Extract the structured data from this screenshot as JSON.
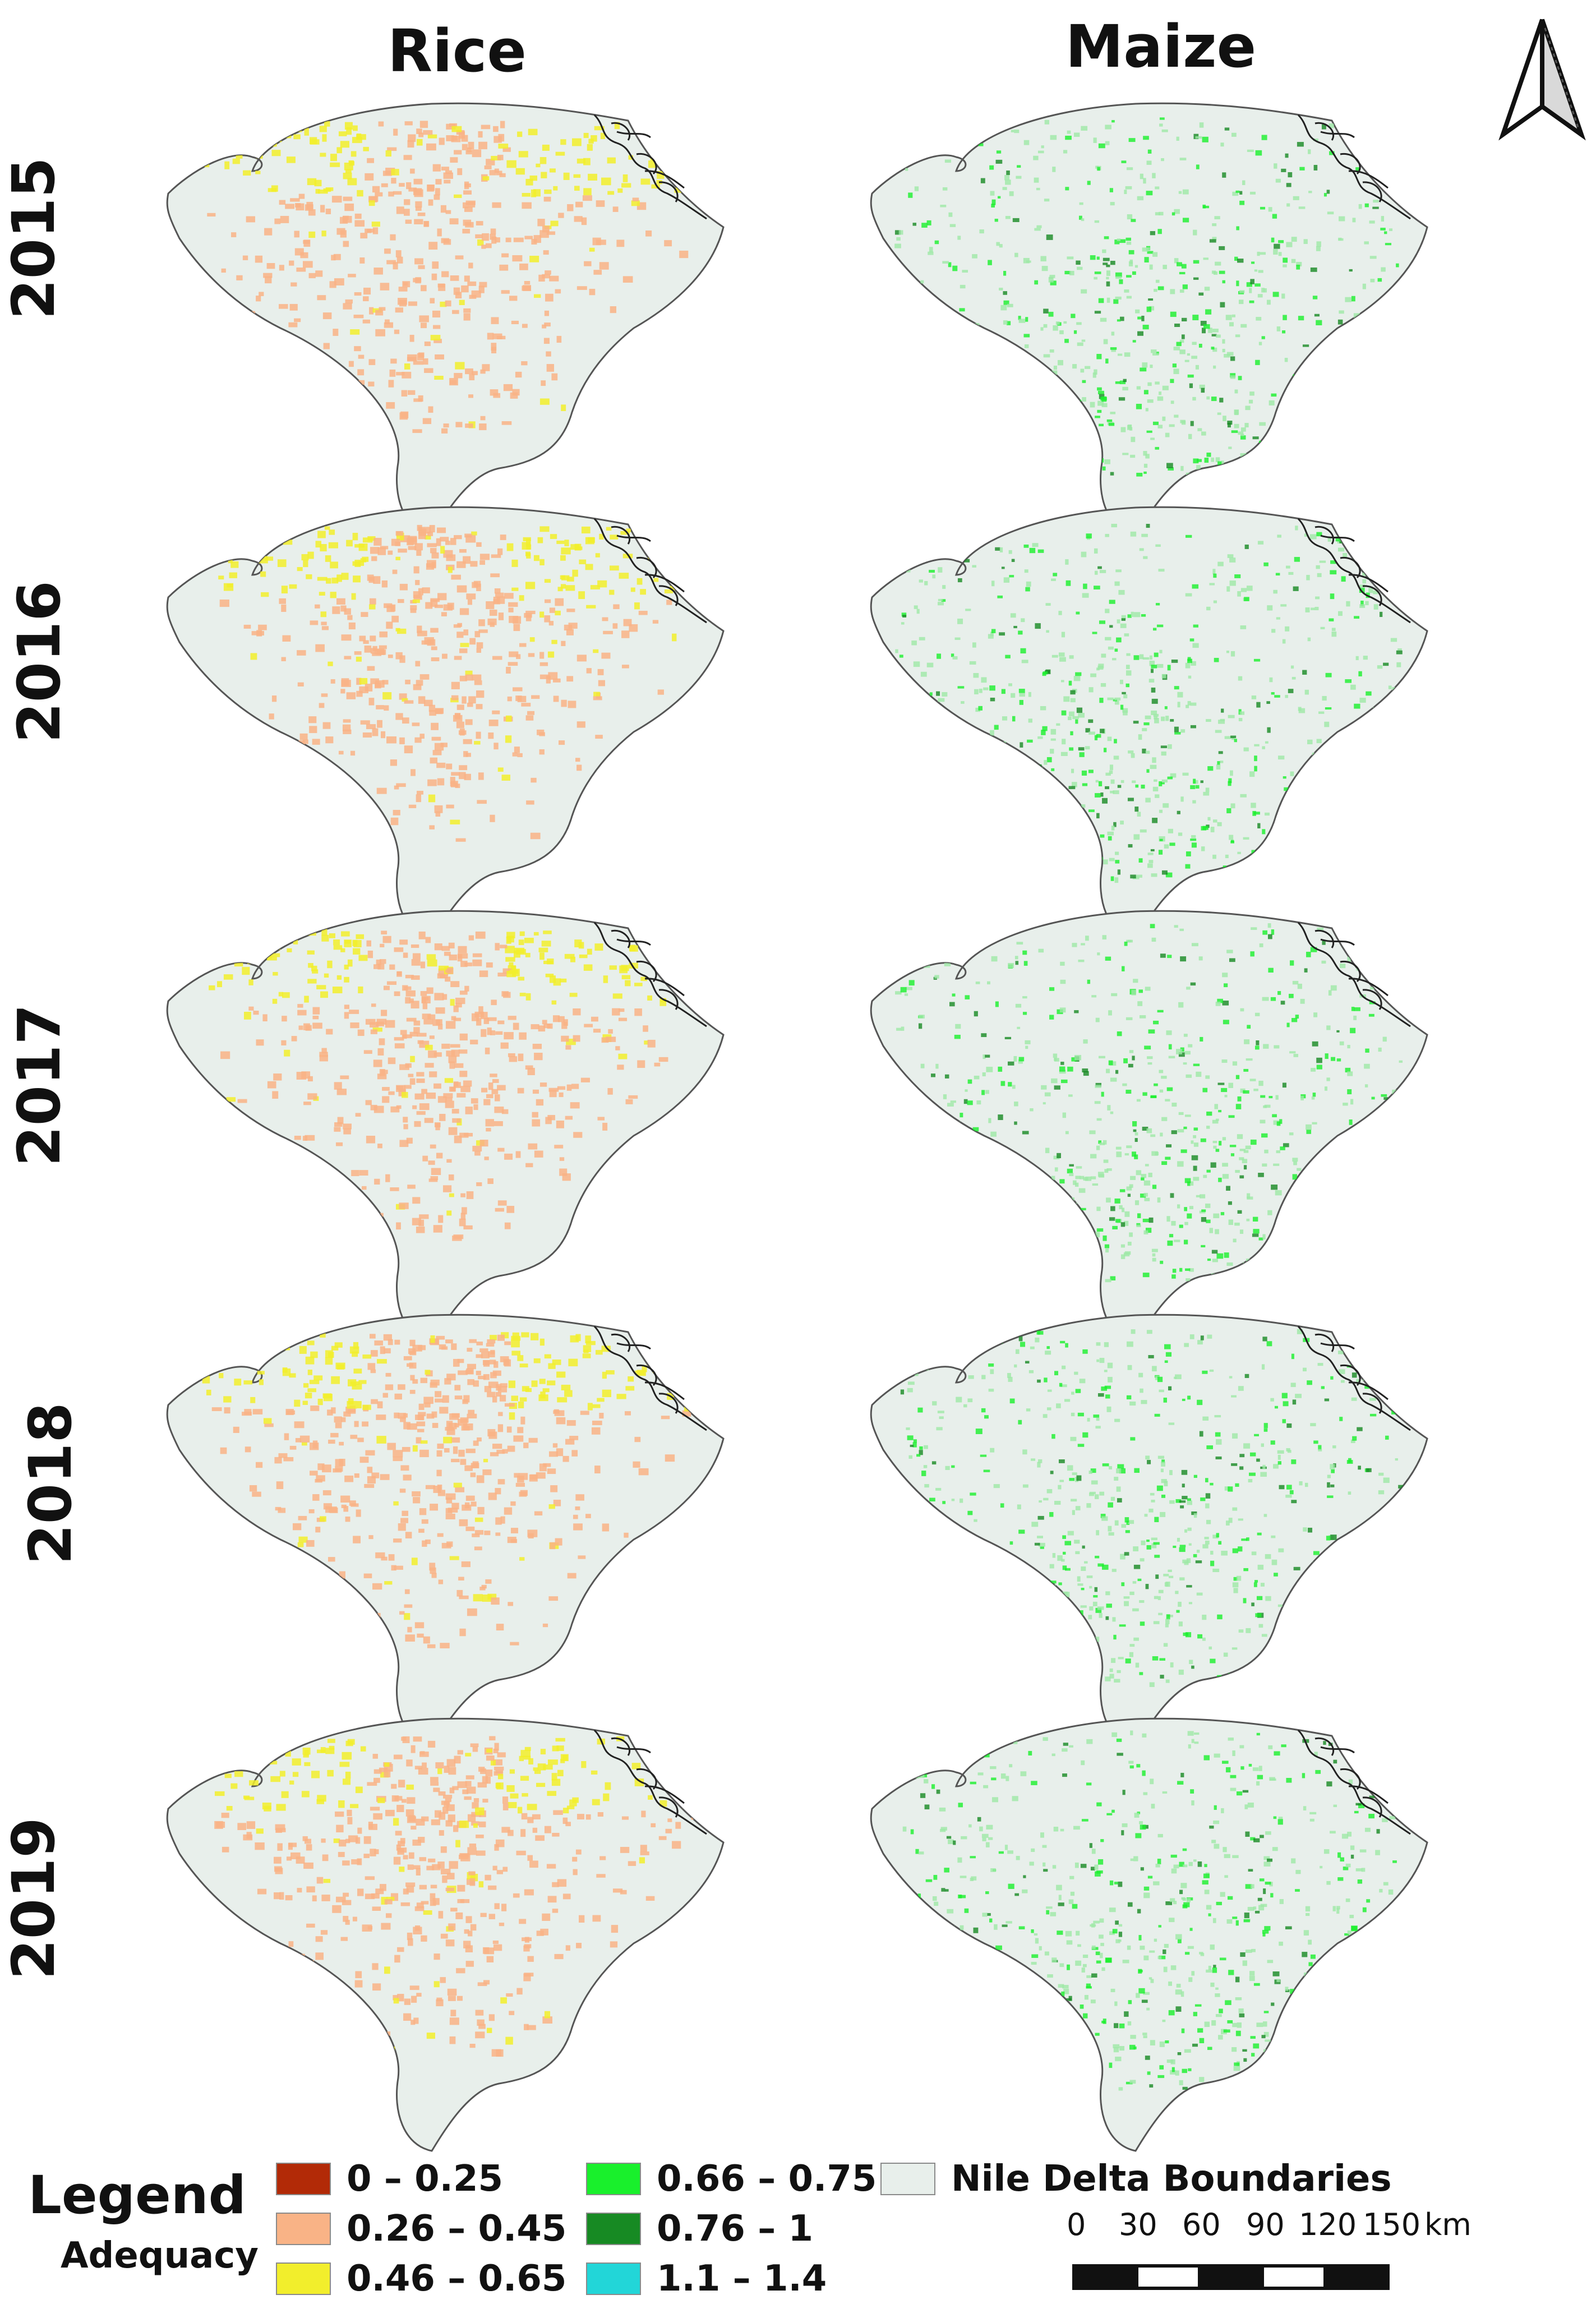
{
  "columns": [
    "Rice",
    "Maize"
  ],
  "years": [
    "2015",
    "2016",
    "2017",
    "2018",
    "2019"
  ],
  "legend": {
    "title": "Legend",
    "subtitle": "Adequacy",
    "classes": [
      {
        "label": "0 – 0.25",
        "color": "#b22a07"
      },
      {
        "label": "0.26 – 0.45",
        "color": "#f9b386"
      },
      {
        "label": "0.46 – 0.65",
        "color": "#f2ee2c"
      },
      {
        "label": "0.66 – 0.75",
        "color": "#19f02c"
      },
      {
        "label": "0.76 – 1",
        "color": "#178a23"
      },
      {
        "label": "1.1 – 1.4",
        "color": "#22d6d8"
      },
      {
        "label": "Nile Delta Boundaries",
        "color": "#e8efeb"
      }
    ]
  },
  "scale_bar": {
    "ticks": [
      "0",
      "30",
      "60",
      "90",
      "120",
      "150"
    ],
    "unit": "km"
  },
  "north_arrow": "north-arrow-icon",
  "colors": {
    "delta_fill": "#e8efeb",
    "delta_outline": "#555555",
    "rice_main": "#f9b386",
    "rice_high": "#f2ee2c",
    "maize_low": "#9ee8a6",
    "maize_mid": "#19f02c",
    "maize_high": "#178a23"
  }
}
